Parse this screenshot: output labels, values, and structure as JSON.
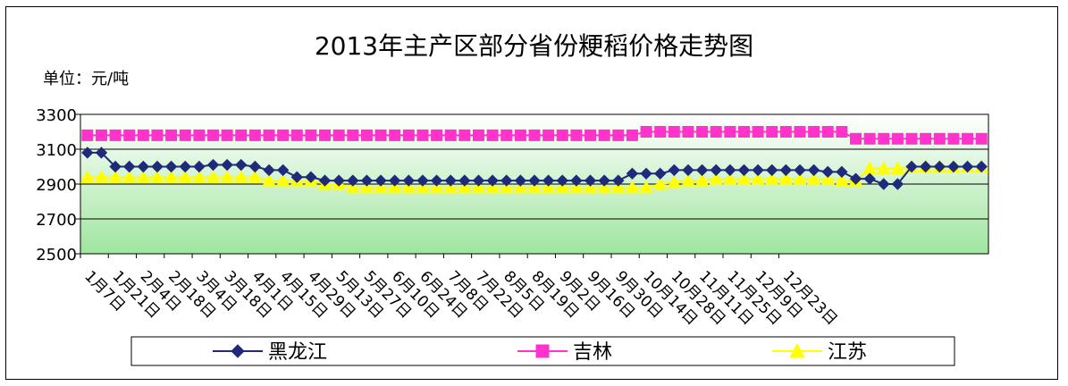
{
  "title": "2013年主产区部分省份粳稻价格走势图",
  "unit_label": "单位：元/吨",
  "chart_data": {
    "type": "line",
    "title": "2013年主产区部分省份粳稻价格走势图",
    "ylim": [
      2500,
      3300
    ],
    "yticks": [
      3300,
      3100,
      2900,
      2700,
      2500
    ],
    "grid": true,
    "legend_position": "bottom",
    "xtick_labels": [
      "1月7日",
      "1月21日",
      "2月4日",
      "2月18日",
      "3月4日",
      "3月18日",
      "4月1日",
      "4月15日",
      "4月29日",
      "5月13日",
      "5月27日",
      "6月10日",
      "6月24日",
      "7月8日",
      "7月22日",
      "8月5日",
      "8月19日",
      "9月2日",
      "9月16日",
      "9月30日",
      "10月14日",
      "10月28日",
      "11月11日",
      "11月25日",
      "12月9日",
      "12月23日"
    ],
    "series": [
      {
        "name": "黑龙江",
        "color": "#1f2a7a",
        "marker": "diamond",
        "values": [
          3080,
          3080,
          3000,
          3000,
          3000,
          3000,
          3000,
          3000,
          3000,
          3010,
          3010,
          3010,
          3000,
          2980,
          2980,
          2940,
          2940,
          2920,
          2920,
          2920,
          2920,
          2920,
          2920,
          2920,
          2920,
          2920,
          2920,
          2920,
          2920,
          2920,
          2920,
          2920,
          2920,
          2920,
          2920,
          2920,
          2920,
          2920,
          2920,
          2960,
          2960,
          2960,
          2980,
          2980,
          2980,
          2980,
          2980,
          2980,
          2980,
          2980,
          2980,
          2980,
          2980,
          2970,
          2970,
          2930,
          2930,
          2900,
          2900,
          3000,
          3000,
          3000,
          3000,
          3000,
          3000
        ]
      },
      {
        "name": "吉林",
        "color": "#ff33cc",
        "marker": "square",
        "values": [
          3180,
          3180,
          3180,
          3180,
          3180,
          3180,
          3180,
          3180,
          3180,
          3180,
          3180,
          3180,
          3180,
          3180,
          3180,
          3180,
          3180,
          3180,
          3180,
          3180,
          3180,
          3180,
          3180,
          3180,
          3180,
          3180,
          3180,
          3180,
          3180,
          3180,
          3180,
          3180,
          3180,
          3180,
          3180,
          3180,
          3180,
          3180,
          3180,
          3180,
          3200,
          3200,
          3200,
          3200,
          3200,
          3200,
          3200,
          3200,
          3200,
          3200,
          3200,
          3200,
          3200,
          3200,
          3200,
          3160,
          3160,
          3160,
          3160,
          3160,
          3160,
          3160,
          3160,
          3160,
          3160
        ]
      },
      {
        "name": "江苏",
        "color": "#ffff00",
        "marker": "triangle",
        "values": [
          2940,
          2940,
          2940,
          2940,
          2940,
          2940,
          2940,
          2940,
          2940,
          2940,
          2940,
          2940,
          2940,
          2920,
          2920,
          2920,
          2920,
          2900,
          2900,
          2880,
          2880,
          2880,
          2880,
          2880,
          2880,
          2880,
          2880,
          2880,
          2880,
          2880,
          2880,
          2880,
          2880,
          2880,
          2880,
          2880,
          2880,
          2880,
          2880,
          2880,
          2880,
          2900,
          2910,
          2920,
          2920,
          2930,
          2930,
          2930,
          2930,
          2930,
          2930,
          2930,
          2930,
          2930,
          2920,
          2920,
          2990,
          2990,
          2990,
          3000,
          3000,
          3000,
          3000,
          3000,
          3000
        ]
      }
    ]
  }
}
